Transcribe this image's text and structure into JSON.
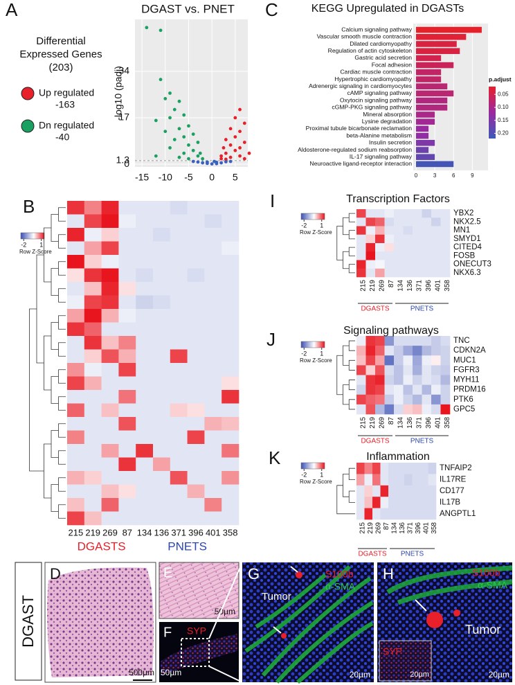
{
  "figure": {
    "panel_labels": [
      "A",
      "B",
      "C",
      "D",
      "E",
      "F",
      "G",
      "H",
      "I",
      "J",
      "K"
    ],
    "side_label": "DGAST",
    "images": {
      "d_scale": "500µm",
      "e_scale": "50µm",
      "f_stain": "SYP",
      "f_scale": "50µm",
      "g_stain1": "S100b",
      "g_stain2": "α-SMA",
      "g_tumor": "Tumor",
      "g_scale": "20µm",
      "h_stain1": "S100b",
      "h_stain2": "α-SMA",
      "h_tumor": "Tumor",
      "h_inset_stain": "SYP",
      "h_inset_scale": "20µm",
      "h_scale": "20µm"
    }
  },
  "chart_data": [
    {
      "type": "scatter",
      "title": "DGAST vs. PNET",
      "ylabel": "-log10 (padj)",
      "legend_title": "Differential Expressed Genes (203)",
      "xlim": [
        -16.5,
        7.7
      ],
      "ylim": [
        -1,
        53
      ],
      "xticks": [
        -15,
        -10,
        -5,
        0,
        5
      ],
      "yticks": [
        0,
        1.3,
        17,
        34
      ],
      "hline": 1.3,
      "series": [
        {
          "name": "Up regulated",
          "count_label": "-163",
          "color": "#e8202a",
          "x": [
            6,
            5,
            7,
            4,
            6,
            3,
            5,
            7,
            2.5,
            4,
            6,
            3,
            5,
            8,
            2,
            4,
            6,
            2,
            3,
            7
          ],
          "y": [
            20,
            17,
            15,
            13,
            12,
            9,
            10,
            8,
            6,
            7,
            6,
            4,
            5,
            4,
            3,
            2.5,
            3,
            2,
            1.8,
            2
          ]
        },
        {
          "name": "Dn regulated",
          "count_label": "-40",
          "color": "#1aa060",
          "x": [
            -14,
            -11,
            -11,
            -9,
            -10,
            -7,
            -8,
            -6,
            -9,
            -12,
            -5,
            -7,
            -10,
            -4,
            -6,
            -8,
            -3,
            -5,
            -9,
            -4,
            -2.5,
            -6,
            -3,
            -12,
            -2,
            -5,
            -7
          ],
          "y": [
            50,
            49,
            31,
            26,
            24,
            23,
            20,
            18,
            17,
            16,
            14,
            13,
            12,
            11,
            10,
            9,
            8,
            7,
            6,
            5,
            4,
            4,
            3,
            3,
            2,
            2,
            2.5
          ]
        },
        {
          "color": "#3a60c0",
          "x": [
            -3,
            -2,
            -1,
            0,
            1,
            2,
            3,
            -4,
            4,
            -1,
            1,
            0.5
          ],
          "y": [
            0.8,
            0.5,
            0.3,
            0.1,
            0.2,
            0.5,
            0.9,
            1,
            1,
            0.8,
            0.7,
            1
          ]
        }
      ]
    },
    {
      "type": "bar",
      "orientation": "horizontal",
      "title": "KEGG Upregulated in DGASTs",
      "categories": [
        "Calcium signaling pathway",
        "Vascular smooth muscle contraction",
        "Dilated cardiomyopathy",
        "Regulation of actin cytoskeleton",
        "Gastric acid secretion",
        "Focal adhesion",
        "Cardiac muscle contraction",
        "Hypertrophic cardiomyopathy",
        "Adrenergic signaling in cardiomyocytes",
        "cAMP signaling pathway",
        "Oxytocin signaling pathway",
        "cGMP-PKG signaling pathway",
        "Mineral absorption",
        "Lysine degradation",
        "Proximal tubule bicarbonate reclamation",
        "beta-Alanine metabolism",
        "Insulin secretion",
        "Aldosterone-regulated sodium reabsorption",
        "IL-17 signaling pathway",
        "Neuroactive ligand-receptor interaction"
      ],
      "values": [
        10.5,
        8,
        6.5,
        7,
        4,
        6,
        4,
        4,
        5,
        6,
        5,
        5,
        3,
        3,
        2,
        2,
        3,
        2,
        3,
        6
      ],
      "padj": [
        0.02,
        0.03,
        0.04,
        0.04,
        0.05,
        0.06,
        0.07,
        0.07,
        0.08,
        0.08,
        0.09,
        0.09,
        0.1,
        0.11,
        0.12,
        0.13,
        0.15,
        0.17,
        0.18,
        0.21
      ],
      "xlim": [
        0,
        11.5
      ],
      "xticks": [
        0,
        3,
        6,
        9
      ],
      "color_scale": {
        "title": "p.adjust",
        "lim": [
          0.02,
          0.22
        ],
        "low_color": "#e8202a",
        "mid_color": "#9a2aa0",
        "high_color": "#3c5ab8",
        "ticks": [
          0.05,
          {
            "value": 0.1,
            "label": "0.10"
          },
          0.15,
          {
            "value": 0.2,
            "label": "0.20"
          }
        ]
      }
    },
    {
      "type": "heatmap",
      "legend_title": "Row Z-Score",
      "legend_ticks": [
        -2,
        1
      ],
      "columns": [
        "215",
        "219",
        "269",
        "87",
        "134",
        "136",
        "371",
        "396",
        "401",
        "358"
      ],
      "groups": [
        {
          "name": "DGASTS",
          "color": "#e8202a",
          "span": 4
        },
        {
          "name": "PNETS",
          "color": "#2a46b0",
          "span": 6
        }
      ],
      "z": [
        [
          1.3,
          0.8,
          1.4,
          -0.3,
          -0.3,
          -0.3,
          -0.4,
          -0.3,
          -0.3,
          -0.3
        ],
        [
          -0.3,
          1.2,
          1.5,
          -0.2,
          -0.3,
          -0.3,
          -0.3,
          -0.3,
          -0.4,
          -0.3
        ],
        [
          1.4,
          -0.2,
          0.3,
          -0.3,
          -0.3,
          -0.4,
          -0.3,
          -0.3,
          -0.3,
          -0.3
        ],
        [
          -0.3,
          0.6,
          1.2,
          -0.3,
          -0.3,
          -0.3,
          -0.3,
          -0.3,
          -0.3,
          -0.2
        ],
        [
          1.5,
          0.3,
          -0.2,
          -0.3,
          -0.3,
          -0.3,
          -0.3,
          -0.3,
          -0.3,
          -0.3
        ],
        [
          0.2,
          1.3,
          1.5,
          -0.3,
          -0.4,
          -0.3,
          -0.3,
          -0.4,
          -0.3,
          -0.3
        ],
        [
          -0.3,
          0.4,
          1.4,
          0.2,
          -0.3,
          -0.3,
          -0.3,
          -0.3,
          -0.3,
          -0.3
        ],
        [
          -0.2,
          1.2,
          1.3,
          -0.3,
          -0.5,
          -0.4,
          -0.3,
          -0.3,
          -0.3,
          -0.3
        ],
        [
          0.6,
          1.5,
          0.5,
          -0.2,
          -0.3,
          -0.3,
          -0.3,
          -0.3,
          -0.3,
          -0.3
        ],
        [
          1.3,
          1.0,
          -0.3,
          -0.3,
          -0.3,
          -0.3,
          -0.3,
          -0.3,
          -0.3,
          -0.3
        ],
        [
          -0.3,
          1.3,
          0.4,
          0.8,
          -0.3,
          -0.3,
          -0.3,
          -0.3,
          -0.3,
          -0.3
        ],
        [
          -0.3,
          0.3,
          1.1,
          0.5,
          -0.3,
          -0.3,
          1.2,
          -0.3,
          -0.3,
          -0.3
        ],
        [
          0.7,
          -0.2,
          -0.3,
          1.2,
          -0.3,
          -0.3,
          -0.3,
          -0.3,
          -0.3,
          -0.3
        ],
        [
          1.2,
          0.5,
          -0.3,
          -0.3,
          -0.3,
          -0.3,
          -0.3,
          -0.3,
          -0.3,
          0.2
        ],
        [
          -0.3,
          -0.3,
          -0.3,
          0.9,
          -0.3,
          -0.3,
          -0.3,
          -0.3,
          -0.3,
          1.3
        ],
        [
          1.0,
          -0.3,
          0.4,
          -0.3,
          -0.3,
          -0.3,
          0.3,
          0.2,
          -0.3,
          -0.3
        ],
        [
          -0.3,
          -0.3,
          -0.3,
          1.1,
          -0.3,
          -0.3,
          -0.3,
          -0.3,
          0.5,
          0.4
        ],
        [
          0.8,
          -0.3,
          -0.3,
          -0.3,
          -0.3,
          -0.3,
          -0.3,
          1.2,
          -0.3,
          -0.3
        ],
        [
          -0.3,
          -0.3,
          0.6,
          -0.3,
          1.3,
          -0.3,
          -0.3,
          -0.3,
          -0.3,
          0.9
        ],
        [
          -0.3,
          -0.3,
          -0.3,
          1.3,
          -0.3,
          0.6,
          -0.3,
          -0.3,
          -0.3,
          -0.3
        ],
        [
          0.5,
          0.3,
          -0.3,
          -0.3,
          -0.3,
          -0.3,
          1.1,
          -0.3,
          -0.3,
          0.7
        ],
        [
          -0.3,
          -0.3,
          0.4,
          0.2,
          -0.3,
          -0.3,
          -0.3,
          0.5,
          -0.3,
          -0.3
        ],
        [
          0.4,
          -0.3,
          1.0,
          -0.3,
          -0.3,
          -0.3,
          -0.3,
          -0.3,
          0.8,
          -0.3
        ],
        [
          1.2,
          0.4,
          -0.3,
          -0.3,
          -0.3,
          -0.3,
          -0.3,
          -0.3,
          -0.3,
          -0.3
        ]
      ]
    },
    {
      "type": "heatmap",
      "title": "Transcription Factors",
      "legend_title": "Row Z-Score",
      "legend_ticks": [
        -2,
        1
      ],
      "rows": [
        "YBX2",
        "NKX2.5",
        "MN1",
        "SMYD1",
        "CITED4",
        "FOSB",
        "ONECUT3",
        "NKX6.3"
      ],
      "columns": [
        "215",
        "219",
        "269",
        "87",
        "134",
        "136",
        "371",
        "396",
        "401",
        "358"
      ],
      "groups": [
        {
          "name": "DGASTS",
          "color": "#e8202a",
          "span": 4
        },
        {
          "name": "PNETS",
          "color": "#2a46b0",
          "span": 6
        }
      ],
      "z": [
        [
          1.2,
          -0.3,
          -0.3,
          -0.2,
          -0.3,
          -0.3,
          -0.3,
          -0.5,
          -0.3,
          -0.3
        ],
        [
          -0.3,
          1.2,
          1.0,
          -0.4,
          -0.3,
          -0.3,
          -0.3,
          -0.3,
          -0.5,
          -0.3
        ],
        [
          1.3,
          -0.2,
          0.5,
          -0.3,
          -0.3,
          -0.4,
          -0.3,
          -0.3,
          -0.3,
          -0.3
        ],
        [
          -0.3,
          0.3,
          1.3,
          -0.2,
          -0.3,
          -0.3,
          -0.3,
          -0.3,
          -0.3,
          -0.3
        ],
        [
          -0.3,
          1.4,
          -0.2,
          0.2,
          -0.3,
          -0.3,
          -0.3,
          -0.3,
          -0.3,
          -0.3
        ],
        [
          -0.3,
          1.5,
          -0.3,
          -0.3,
          -0.3,
          -0.3,
          -0.3,
          -0.3,
          -0.3,
          -0.3
        ],
        [
          1.4,
          -0.2,
          -0.1,
          -0.3,
          -0.3,
          -0.3,
          -0.3,
          -0.3,
          -0.3,
          -0.3
        ],
        [
          1.3,
          -0.3,
          0.6,
          -0.3,
          -0.3,
          -0.3,
          -0.3,
          -0.3,
          -0.3,
          -0.3
        ]
      ]
    },
    {
      "type": "heatmap",
      "title": "Signaling pathways",
      "legend_title": "Row Z-Score",
      "legend_ticks": [
        -2,
        1
      ],
      "rows": [
        "TNC",
        "CDKN2A",
        "MUC1",
        "FGFR3",
        "MYH11",
        "PRDM16",
        "PTK6",
        "GPC5"
      ],
      "columns": [
        "215",
        "219",
        "269",
        "87",
        "134",
        "136",
        "371",
        "396",
        "401",
        "358"
      ],
      "groups": [
        {
          "name": "DGASTS",
          "color": "#e8202a",
          "span": 4
        },
        {
          "name": "PNETS",
          "color": "#2a46b0",
          "span": 6
        }
      ],
      "z": [
        [
          -0.2,
          1.3,
          1.2,
          -1.2,
          -0.4,
          -0.4,
          -0.4,
          -0.4,
          -0.6,
          -0.4
        ],
        [
          0.5,
          1.4,
          1.0,
          -0.3,
          -0.6,
          -1.0,
          -1.4,
          -0.8,
          -0.6,
          -0.5
        ],
        [
          0.4,
          1.2,
          0.6,
          -1.6,
          -0.6,
          -0.2,
          -1.0,
          -0.2,
          0.1,
          -0.5
        ],
        [
          1.2,
          0.3,
          1.1,
          -0.4,
          -0.7,
          -0.3,
          -0.9,
          -0.3,
          -0.5,
          -0.6
        ],
        [
          -0.3,
          1.3,
          1.4,
          -0.5,
          -0.7,
          -0.2,
          -0.5,
          -0.3,
          -0.4,
          -0.8
        ],
        [
          -0.5,
          1.3,
          1.2,
          -0.3,
          -0.2,
          -0.7,
          -0.3,
          -0.8,
          -0.2,
          -0.5
        ],
        [
          1.2,
          1.0,
          0.9,
          -0.6,
          -0.2,
          -0.5,
          -0.8,
          -0.3,
          -1.2,
          -0.5
        ],
        [
          -0.3,
          1.1,
          -0.8,
          -1.5,
          -0.4,
          0.3,
          0.4,
          -0.2,
          -0.4,
          1.5
        ]
      ]
    },
    {
      "type": "heatmap",
      "title": "Inflammation",
      "legend_title": "Row Z-Score",
      "legend_ticks": [
        -2,
        1
      ],
      "rows": [
        "TNFAIP2",
        "IL17RE",
        "CD177",
        "IL17B",
        "ANGPTL1"
      ],
      "columns": [
        "215",
        "219",
        "269",
        "87",
        "134",
        "136",
        "371",
        "396",
        "401",
        "358"
      ],
      "groups": [
        {
          "name": "DGASTS",
          "color": "#e8202a",
          "span": 4
        },
        {
          "name": "PNETS",
          "color": "#2a46b0",
          "span": 6
        }
      ],
      "z": [
        [
          1.2,
          0.8,
          1.2,
          -0.3,
          -0.4,
          -0.4,
          -0.4,
          -0.4,
          -0.4,
          -0.5
        ],
        [
          0.6,
          -0.2,
          0.9,
          -0.3,
          -0.4,
          -0.4,
          -0.5,
          -0.4,
          -0.4,
          -0.3
        ],
        [
          -0.3,
          0.3,
          -0.3,
          1.4,
          -0.4,
          -0.4,
          -0.4,
          -0.4,
          -0.4,
          -0.4
        ],
        [
          -0.3,
          0.4,
          1.4,
          -0.2,
          -0.4,
          -0.4,
          -0.4,
          -0.4,
          -0.4,
          -0.4
        ],
        [
          -0.3,
          1.4,
          -0.3,
          -0.4,
          -0.4,
          -0.4,
          -0.4,
          -0.4,
          -0.4,
          -0.4
        ]
      ]
    }
  ]
}
